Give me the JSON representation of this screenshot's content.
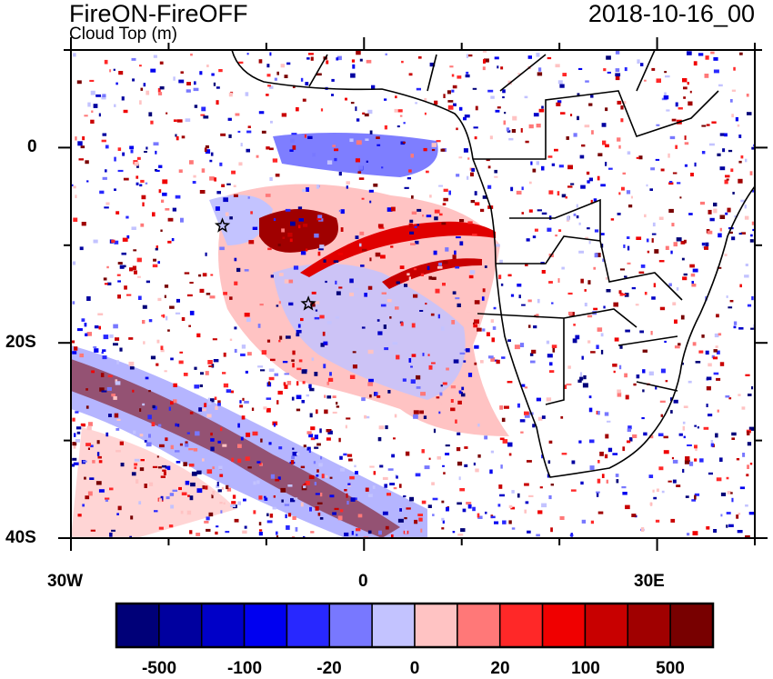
{
  "title": "FireON-FireOFF",
  "subtitle": "Cloud Top (m)",
  "date": "2018-10-16_00",
  "axes": {
    "x_tick_labels": [
      "30W",
      "0",
      "30E"
    ],
    "y_tick_labels": [
      "0",
      "20S",
      "40S"
    ],
    "lon_range": [
      -30,
      40
    ],
    "lat_range": [
      -40,
      10
    ]
  },
  "colorbar": {
    "labels": [
      "-500",
      "-100",
      "-20",
      "0",
      "20",
      "100",
      "500"
    ],
    "colors": [
      "#000078",
      "#00009f",
      "#0000c8",
      "#0000f0",
      "#2828ff",
      "#7878ff",
      "#c3c3ff",
      "#ffc3c3",
      "#ff7878",
      "#ff2828",
      "#f00000",
      "#c80000",
      "#a00000",
      "#780000"
    ]
  },
  "markers": [
    {
      "name": "star",
      "lon": -14.5,
      "lat": -8
    },
    {
      "name": "star",
      "lon": -5.7,
      "lat": -16
    }
  ]
}
